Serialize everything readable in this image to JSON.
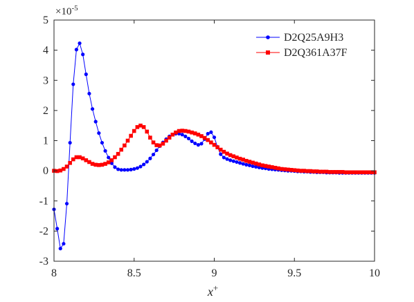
{
  "chart_data": {
    "type": "line",
    "title": "",
    "xlabel": "x",
    "xlabel_superscript": "+",
    "ylabel": "",
    "y_exponent_base": "×10",
    "y_exponent_power": "-5",
    "xlim": [
      8,
      10
    ],
    "ylim": [
      -3,
      5
    ],
    "x_ticks": [
      8,
      8.5,
      9,
      9.5,
      10
    ],
    "x_tick_labels": [
      "8",
      "8.5",
      "9",
      "9.5",
      "10"
    ],
    "y_ticks": [
      -3,
      -2,
      -1,
      0,
      1,
      2,
      3,
      4,
      5
    ],
    "y_tick_labels": [
      "-3",
      "-2",
      "-1",
      "0",
      "1",
      "2",
      "3",
      "4",
      "5"
    ],
    "grid": false,
    "box": true,
    "legend_position": "top-right",
    "series": [
      {
        "name": "D2Q25A9H3",
        "color": "#0000ff",
        "marker": "circle",
        "x": [
          8.0,
          8.02,
          8.04,
          8.06,
          8.08,
          8.1,
          8.12,
          8.14,
          8.16,
          8.18,
          8.2,
          8.22,
          8.24,
          8.26,
          8.28,
          8.3,
          8.32,
          8.34,
          8.36,
          8.38,
          8.4,
          8.42,
          8.44,
          8.46,
          8.48,
          8.5,
          8.52,
          8.54,
          8.56,
          8.58,
          8.6,
          8.62,
          8.64,
          8.66,
          8.68,
          8.7,
          8.72,
          8.74,
          8.76,
          8.78,
          8.8,
          8.82,
          8.84,
          8.86,
          8.88,
          8.9,
          8.92,
          8.94,
          8.96,
          8.98,
          9.0,
          9.02,
          9.04,
          9.06,
          9.08,
          9.1,
          9.12,
          9.14,
          9.16,
          9.18,
          9.2,
          9.22,
          9.24,
          9.26,
          9.28,
          9.3,
          9.32,
          9.34,
          9.36,
          9.38,
          9.4,
          9.42,
          9.44,
          9.46,
          9.48,
          9.5,
          9.52,
          9.54,
          9.56,
          9.58,
          9.6,
          9.62,
          9.64,
          9.66,
          9.68,
          9.7,
          9.72,
          9.74,
          9.76,
          9.78,
          9.8,
          9.82,
          9.84,
          9.86,
          9.88,
          9.9,
          9.92,
          9.94,
          9.96,
          9.98,
          10.0
        ],
        "y": [
          -1.28,
          -1.92,
          -2.58,
          -2.42,
          -1.09,
          0.93,
          2.87,
          4.02,
          4.23,
          3.86,
          3.2,
          2.56,
          2.05,
          1.63,
          1.25,
          0.93,
          0.66,
          0.44,
          0.25,
          0.12,
          0.05,
          0.03,
          0.03,
          0.03,
          0.04,
          0.06,
          0.09,
          0.14,
          0.21,
          0.3,
          0.41,
          0.54,
          0.68,
          0.82,
          0.94,
          1.05,
          1.14,
          1.2,
          1.23,
          1.23,
          1.2,
          1.14,
          1.07,
          0.98,
          0.91,
          0.86,
          0.9,
          1.05,
          1.23,
          1.28,
          1.11,
          0.79,
          0.55,
          0.44,
          0.39,
          0.35,
          0.32,
          0.29,
          0.26,
          0.23,
          0.2,
          0.18,
          0.15,
          0.13,
          0.11,
          0.09,
          0.08,
          0.06,
          0.05,
          0.04,
          0.03,
          0.02,
          0.01,
          0.0,
          0.0,
          -0.01,
          -0.02,
          -0.02,
          -0.03,
          -0.03,
          -0.04,
          -0.04,
          -0.05,
          -0.05,
          -0.05,
          -0.06,
          -0.06,
          -0.06,
          -0.06,
          -0.07,
          -0.07,
          -0.07,
          -0.07,
          -0.07,
          -0.07,
          -0.07,
          -0.07,
          -0.07,
          -0.07,
          -0.07,
          -0.07
        ]
      },
      {
        "name": "D2Q361A37F",
        "color": "#ff0000",
        "marker": "square",
        "x": [
          8.0,
          8.02,
          8.04,
          8.06,
          8.08,
          8.1,
          8.12,
          8.14,
          8.16,
          8.18,
          8.2,
          8.22,
          8.24,
          8.26,
          8.28,
          8.3,
          8.32,
          8.34,
          8.36,
          8.38,
          8.4,
          8.42,
          8.44,
          8.46,
          8.48,
          8.5,
          8.52,
          8.54,
          8.56,
          8.58,
          8.6,
          8.62,
          8.64,
          8.66,
          8.68,
          8.7,
          8.72,
          8.74,
          8.76,
          8.78,
          8.8,
          8.82,
          8.84,
          8.86,
          8.88,
          8.9,
          8.92,
          8.94,
          8.96,
          8.98,
          9.0,
          9.02,
          9.04,
          9.06,
          9.08,
          9.1,
          9.12,
          9.14,
          9.16,
          9.18,
          9.2,
          9.22,
          9.24,
          9.26,
          9.28,
          9.3,
          9.32,
          9.34,
          9.36,
          9.38,
          9.4,
          9.42,
          9.44,
          9.46,
          9.48,
          9.5,
          9.52,
          9.54,
          9.56,
          9.58,
          9.6,
          9.62,
          9.64,
          9.66,
          9.68,
          9.7,
          9.72,
          9.74,
          9.76,
          9.78,
          9.8,
          9.82,
          9.84,
          9.86,
          9.88,
          9.9,
          9.92,
          9.94,
          9.96,
          9.98,
          10.0
        ],
        "y": [
          0.0,
          -0.01,
          0.01,
          0.06,
          0.14,
          0.26,
          0.38,
          0.45,
          0.45,
          0.41,
          0.35,
          0.29,
          0.23,
          0.2,
          0.19,
          0.2,
          0.23,
          0.28,
          0.35,
          0.45,
          0.56,
          0.7,
          0.84,
          1.0,
          1.16,
          1.32,
          1.45,
          1.5,
          1.45,
          1.3,
          1.1,
          0.94,
          0.85,
          0.84,
          0.9,
          1.0,
          1.1,
          1.2,
          1.27,
          1.32,
          1.33,
          1.32,
          1.3,
          1.27,
          1.24,
          1.2,
          1.15,
          1.09,
          1.02,
          0.94,
          0.86,
          0.78,
          0.7,
          0.63,
          0.57,
          0.52,
          0.48,
          0.44,
          0.4,
          0.37,
          0.33,
          0.3,
          0.27,
          0.24,
          0.21,
          0.18,
          0.16,
          0.14,
          0.12,
          0.1,
          0.08,
          0.06,
          0.05,
          0.04,
          0.03,
          0.02,
          0.01,
          0.0,
          0.0,
          -0.01,
          -0.01,
          -0.02,
          -0.02,
          -0.03,
          -0.03,
          -0.03,
          -0.04,
          -0.04,
          -0.04,
          -0.04,
          -0.04,
          -0.05,
          -0.05,
          -0.05,
          -0.05,
          -0.05,
          -0.05,
          -0.05,
          -0.05,
          -0.05,
          -0.05
        ]
      }
    ]
  }
}
